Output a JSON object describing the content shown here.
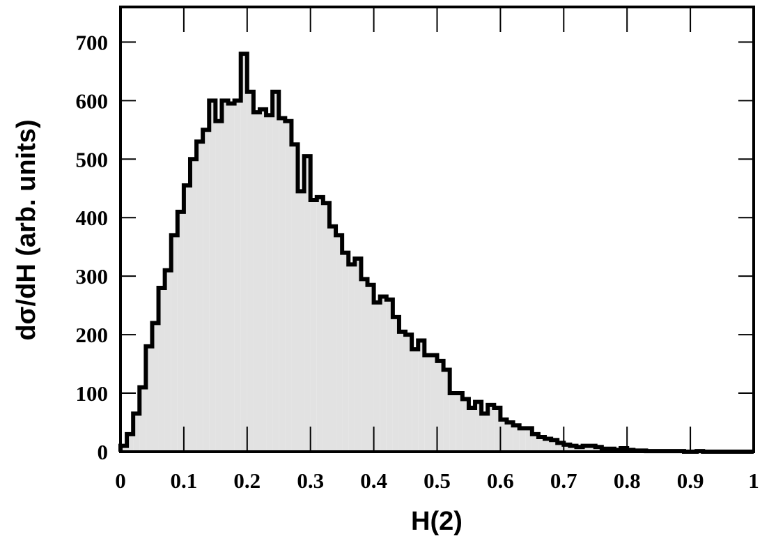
{
  "chart_data": {
    "type": "histogram",
    "xlabel": "H(2)",
    "ylabel": "dσ/dH (arb. units)",
    "bins": [
      0,
      0.01,
      0.02,
      0.03,
      0.04,
      0.05,
      0.06,
      0.07,
      0.08,
      0.09,
      0.1,
      0.11,
      0.12,
      0.13,
      0.14,
      0.15,
      0.16,
      0.17,
      0.18,
      0.19,
      0.2,
      0.21,
      0.22,
      0.23,
      0.24,
      0.25,
      0.26,
      0.27,
      0.28,
      0.29,
      0.3,
      0.31,
      0.32,
      0.33,
      0.34,
      0.35,
      0.36,
      0.37,
      0.38,
      0.39,
      0.4,
      0.41,
      0.42,
      0.43,
      0.44,
      0.45,
      0.46,
      0.47,
      0.48,
      0.49,
      0.5,
      0.51,
      0.52,
      0.53,
      0.54,
      0.55,
      0.56,
      0.57,
      0.58,
      0.59,
      0.6,
      0.61,
      0.62,
      0.63,
      0.64,
      0.65,
      0.66,
      0.67,
      0.68,
      0.69,
      0.7,
      0.71,
      0.72,
      0.73,
      0.74,
      0.75,
      0.76,
      0.77,
      0.78,
      0.79,
      0.8,
      0.81,
      0.82,
      0.83,
      0.84,
      0.85,
      0.86,
      0.87,
      0.88,
      0.89,
      0.9,
      0.91,
      0.92,
      0.93,
      0.94,
      0.95,
      0.96,
      0.97,
      0.98,
      0.99,
      1
    ],
    "values": [
      10,
      30,
      65,
      110,
      180,
      220,
      280,
      310,
      370,
      410,
      455,
      500,
      530,
      550,
      600,
      565,
      600,
      595,
      600,
      680,
      615,
      580,
      585,
      575,
      615,
      570,
      565,
      525,
      445,
      505,
      430,
      435,
      425,
      385,
      370,
      340,
      320,
      330,
      295,
      285,
      255,
      265,
      260,
      230,
      205,
      200,
      175,
      190,
      165,
      165,
      155,
      140,
      100,
      100,
      90,
      75,
      85,
      65,
      80,
      75,
      55,
      50,
      45,
      40,
      40,
      30,
      25,
      22,
      20,
      15,
      12,
      10,
      8,
      10,
      10,
      8,
      5,
      5,
      3,
      6,
      3,
      2,
      2,
      1,
      1,
      1,
      1,
      1,
      1,
      0,
      0,
      1,
      0,
      0,
      0,
      0,
      0,
      0,
      0,
      0
    ],
    "color": "#e2e2e2",
    "edgecolor": "#000000",
    "xlim": [
      0,
      1
    ],
    "xticks": [
      0,
      0.1,
      0.2,
      0.3,
      0.4,
      0.5,
      0.6,
      0.7,
      0.8,
      0.9,
      1
    ],
    "ylim": [
      0,
      760
    ],
    "yticks": [
      0,
      100,
      200,
      300,
      400,
      500,
      600,
      700
    ]
  }
}
